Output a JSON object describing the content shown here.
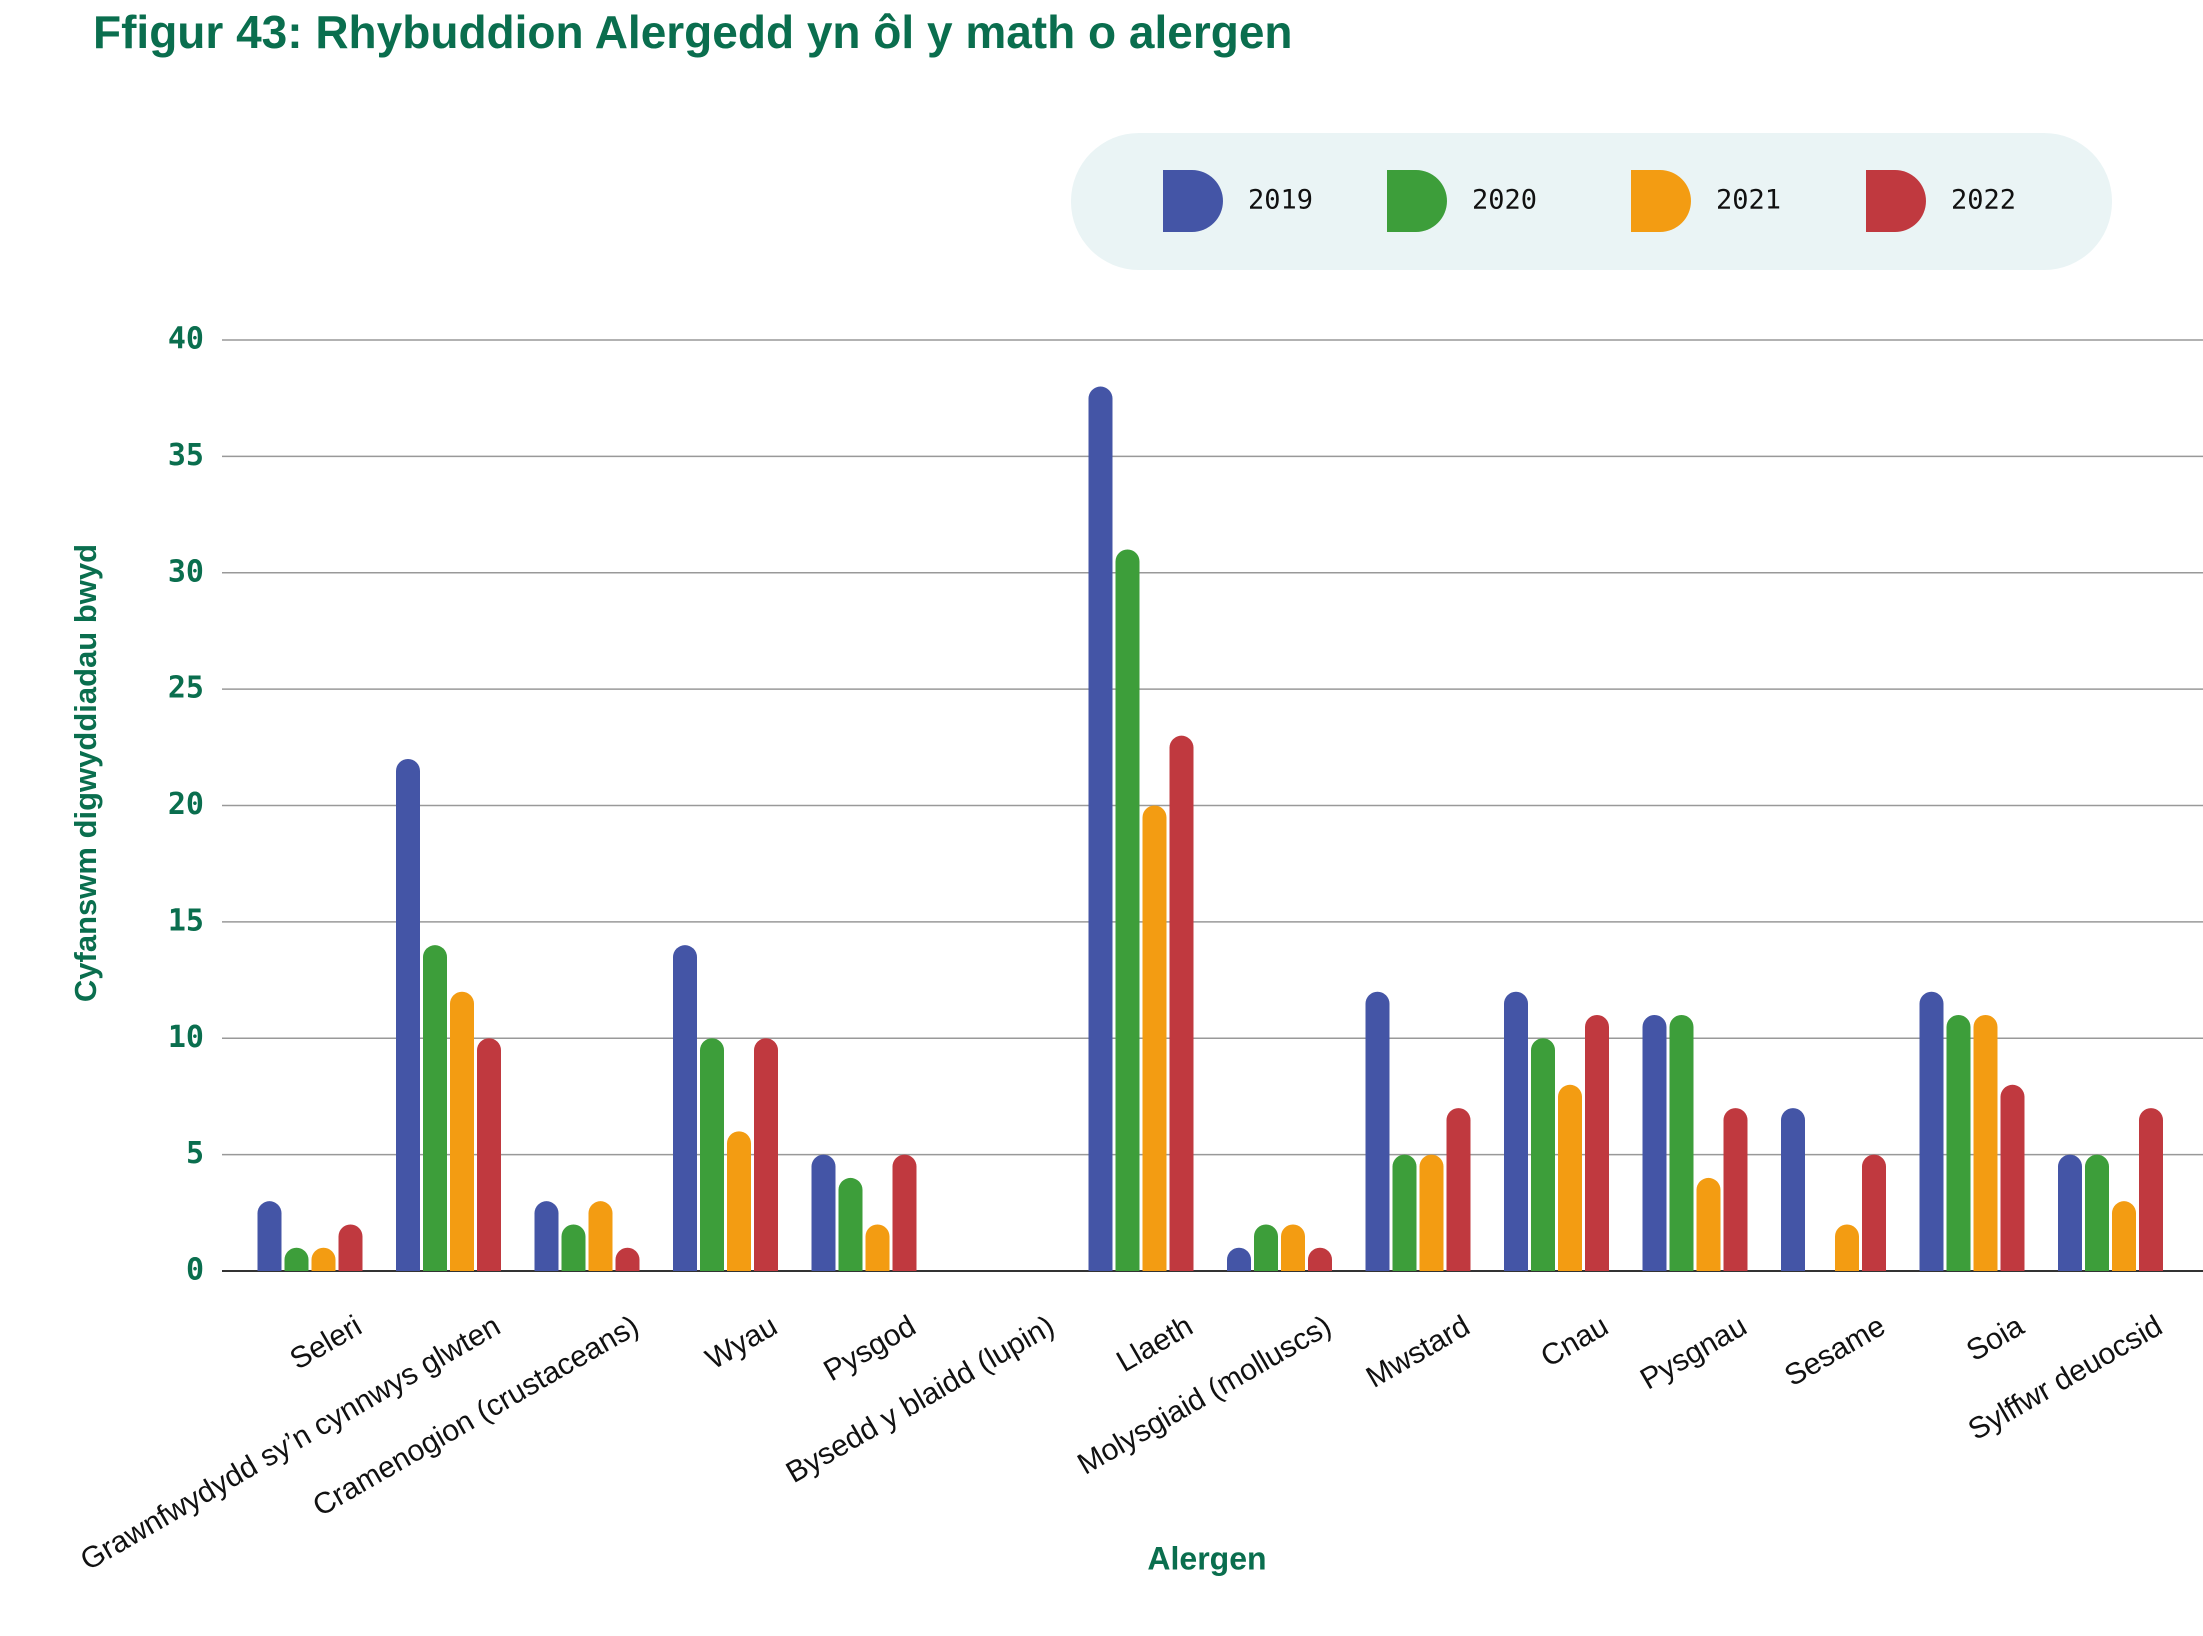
{
  "chart_data": {
    "type": "bar",
    "title": "Ffigur 43: Rhybuddion Alergedd yn ôl y math o alergen",
    "x_label": "Alergen",
    "y_label": "Cyfanswm digwyddiadau bwyd",
    "categories": [
      "Seleri",
      "Grawnfwydydd sy’n cynnwys glwten",
      "Cramenogion (crustaceans)",
      "Wyau",
      "Pysgod",
      "Bysedd y blaidd (lupin)",
      "Llaeth",
      "Molysgiaid (molluscs)",
      "Mwstard",
      "Cnau",
      "Pysgnau",
      "Sesame",
      "Soia",
      "Sylffwr deuocsid"
    ],
    "series": [
      {
        "name": "2019",
        "color": "#4455a6",
        "values": [
          3,
          22,
          3,
          14,
          5,
          0,
          38,
          1,
          12,
          12,
          11,
          7,
          12,
          5
        ]
      },
      {
        "name": "2020",
        "color": "#3d9e3a",
        "values": [
          1,
          14,
          2,
          10,
          4,
          0,
          31,
          2,
          5,
          10,
          11,
          0,
          11,
          5
        ]
      },
      {
        "name": "2021",
        "color": "#f39c12",
        "values": [
          1,
          12,
          3,
          6,
          2,
          0,
          20,
          2,
          5,
          8,
          4,
          2,
          11,
          3
        ]
      },
      {
        "name": "2022",
        "color": "#c0393f",
        "values": [
          2,
          10,
          1,
          10,
          5,
          0,
          23,
          1,
          7,
          11,
          7,
          5,
          8,
          7
        ]
      }
    ],
    "ylim": [
      0,
      40
    ],
    "yticks": [
      0,
      5,
      10,
      15,
      20,
      25,
      30,
      35,
      40
    ],
    "grid": true,
    "legend": "top-right"
  }
}
